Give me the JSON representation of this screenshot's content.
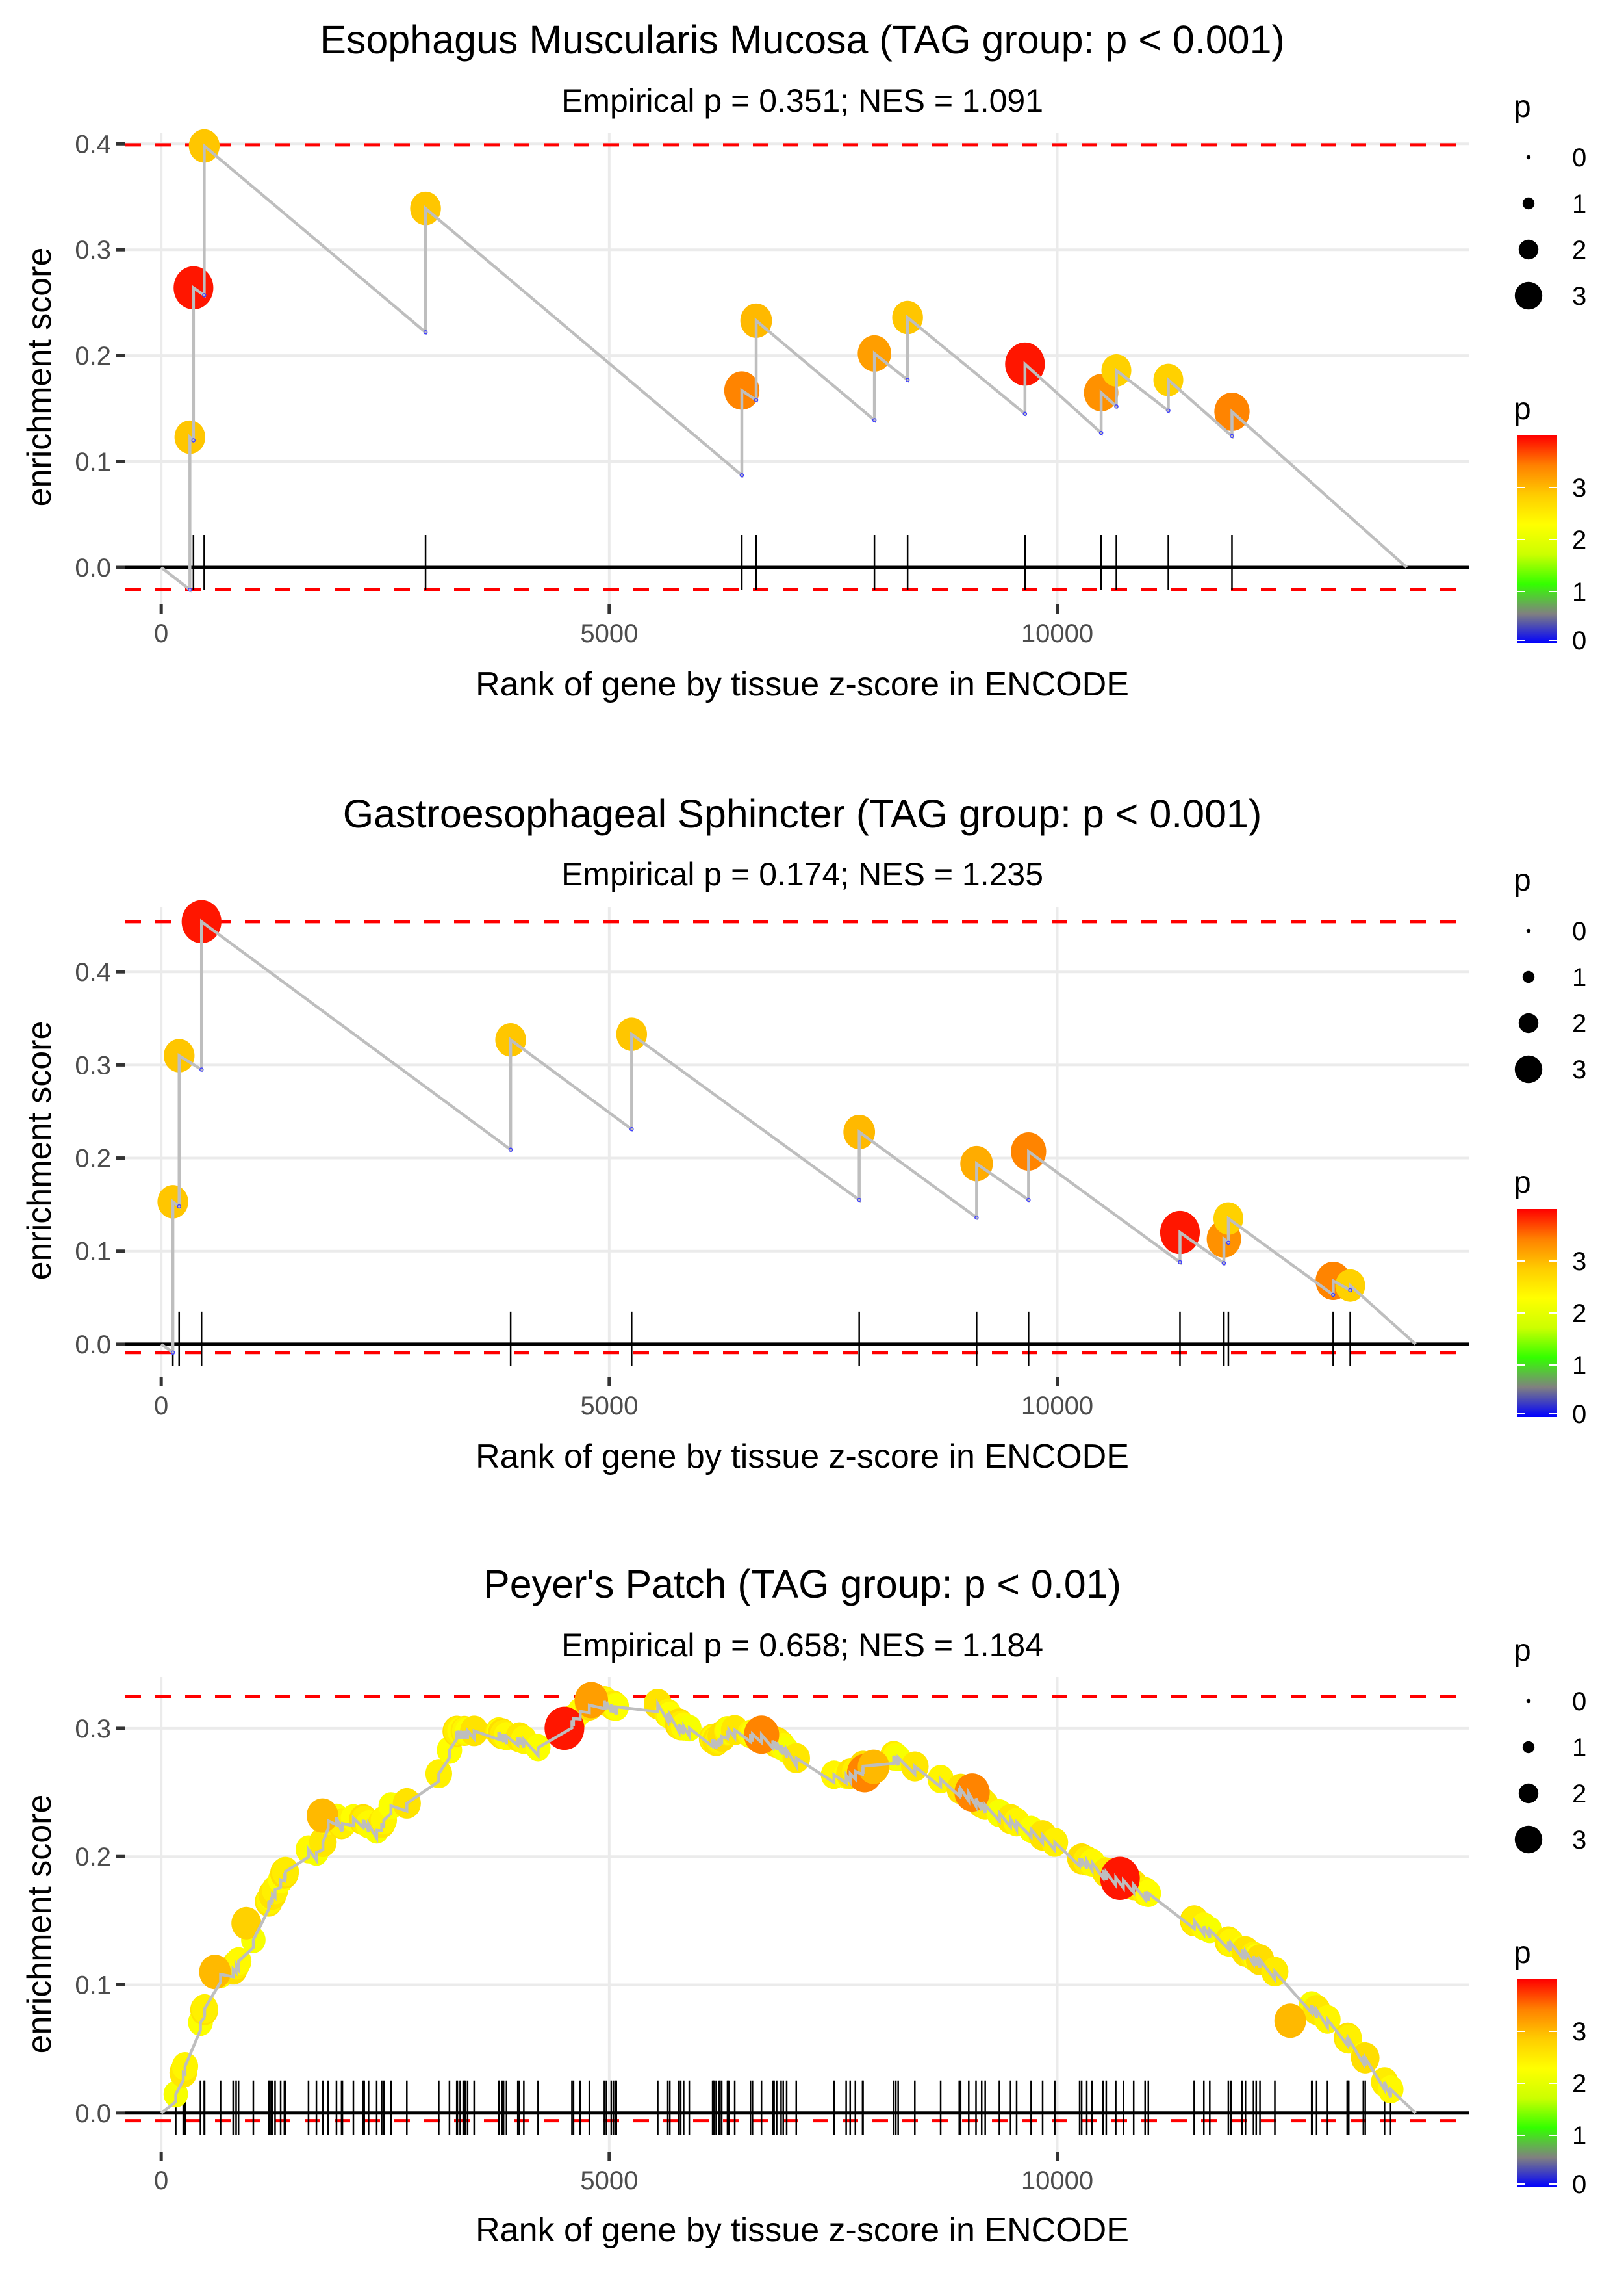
{
  "chart_data": [
    {
      "type": "line",
      "title": "Esophagus Muscularis Mucosa (TAG group: p < 0.001)",
      "subtitle": "Empirical p = 0.351; NES = 1.091",
      "xlabel": "Rank of gene by tissue z-score in ENCODE",
      "ylabel": "enrichment score",
      "xlim": [
        -400,
        14600
      ],
      "ylim": [
        -0.035,
        0.41
      ],
      "xticks": [
        0,
        5000,
        10000
      ],
      "xtick_labels": [
        "0",
        "5000",
        "10000"
      ],
      "yticks": [
        0.0,
        0.1,
        0.2,
        0.3,
        0.4
      ],
      "ytick_labels": [
        "0.0",
        "0.1",
        "0.2",
        "0.3",
        "0.4"
      ],
      "threshold_upper": 0.399,
      "threshold_lower": -0.021,
      "points": [
        {
          "x": 320,
          "low": -0.021,
          "es": 0.123,
          "p": 2.9
        },
        {
          "x": 360,
          "low": 0.12,
          "es": 0.264,
          "p": 3.9
        },
        {
          "x": 480,
          "low": 0.257,
          "es": 0.398,
          "p": 2.9
        },
        {
          "x": 2950,
          "low": 0.222,
          "es": 0.339,
          "p": 2.9
        },
        {
          "x": 6480,
          "low": 0.087,
          "es": 0.167,
          "p": 3.4
        },
        {
          "x": 6640,
          "low": 0.158,
          "es": 0.233,
          "p": 3.0
        },
        {
          "x": 7960,
          "low": 0.139,
          "es": 0.202,
          "p": 3.2
        },
        {
          "x": 8330,
          "low": 0.177,
          "es": 0.236,
          "p": 2.9
        },
        {
          "x": 9640,
          "low": 0.145,
          "es": 0.192,
          "p": 3.9
        },
        {
          "x": 10490,
          "low": 0.127,
          "es": 0.165,
          "p": 3.3
        },
        {
          "x": 10660,
          "low": 0.152,
          "es": 0.186,
          "p": 2.8
        },
        {
          "x": 11240,
          "low": 0.148,
          "es": 0.177,
          "p": 2.8
        },
        {
          "x": 11950,
          "low": 0.124,
          "es": 0.147,
          "p": 3.4
        }
      ],
      "start": {
        "x": 0,
        "es": 0.0
      },
      "end": {
        "x": 13900,
        "es": 0.0
      }
    },
    {
      "type": "line",
      "title": "Gastroesophageal Sphincter (TAG group: p < 0.001)",
      "subtitle": "Empirical p = 0.174; NES = 1.235",
      "xlabel": "Rank of gene by tissue z-score in ENCODE",
      "ylabel": "enrichment score",
      "xlim": [
        -400,
        14600
      ],
      "ylim": [
        -0.035,
        0.47
      ],
      "xticks": [
        0,
        5000,
        10000
      ],
      "xtick_labels": [
        "0",
        "5000",
        "10000"
      ],
      "yticks": [
        0.0,
        0.1,
        0.2,
        0.3,
        0.4
      ],
      "ytick_labels": [
        "0.0",
        "0.1",
        "0.2",
        "0.3",
        "0.4"
      ],
      "threshold_upper": 0.454,
      "threshold_lower": -0.009,
      "points": [
        {
          "x": 130,
          "low": -0.009,
          "es": 0.153,
          "p": 2.9
        },
        {
          "x": 200,
          "low": 0.148,
          "es": 0.31,
          "p": 2.9
        },
        {
          "x": 450,
          "low": 0.295,
          "es": 0.454,
          "p": 3.9
        },
        {
          "x": 3900,
          "low": 0.209,
          "es": 0.327,
          "p": 2.9
        },
        {
          "x": 5250,
          "low": 0.231,
          "es": 0.333,
          "p": 2.9
        },
        {
          "x": 7790,
          "low": 0.155,
          "es": 0.228,
          "p": 3.0
        },
        {
          "x": 9100,
          "low": 0.136,
          "es": 0.194,
          "p": 3.1
        },
        {
          "x": 9680,
          "low": 0.155,
          "es": 0.207,
          "p": 3.4
        },
        {
          "x": 11370,
          "low": 0.088,
          "es": 0.12,
          "p": 3.9
        },
        {
          "x": 11860,
          "low": 0.087,
          "es": 0.113,
          "p": 3.3
        },
        {
          "x": 11910,
          "low": 0.109,
          "es": 0.135,
          "p": 2.8
        },
        {
          "x": 13080,
          "low": 0.053,
          "es": 0.068,
          "p": 3.4
        },
        {
          "x": 13270,
          "low": 0.058,
          "es": 0.063,
          "p": 2.8
        }
      ],
      "start": {
        "x": 0,
        "es": 0.0
      },
      "end": {
        "x": 14000,
        "es": 0.0
      }
    },
    {
      "type": "line",
      "title": "Peyer's Patch (TAG group: p < 0.01)",
      "subtitle": "Empirical p = 0.658; NES = 1.184",
      "xlabel": "Rank of gene by tissue z-score in ENCODE",
      "ylabel": "enrichment score",
      "xlim": [
        -400,
        14600
      ],
      "ylim": [
        -0.03,
        0.34
      ],
      "xticks": [
        0,
        5000,
        10000
      ],
      "xtick_labels": [
        "0",
        "5000",
        "10000"
      ],
      "yticks": [
        0.0,
        0.1,
        0.2,
        0.3
      ],
      "ytick_labels": [
        "0.0",
        "0.1",
        "0.2",
        "0.3"
      ],
      "threshold_upper": 0.325,
      "threshold_lower": -0.006,
      "curve": [
        [
          0,
          0.0
        ],
        [
          100,
          0.006
        ],
        [
          200,
          0.02
        ],
        [
          300,
          0.045
        ],
        [
          400,
          0.062
        ],
        [
          500,
          0.085
        ],
        [
          600,
          0.105
        ],
        [
          700,
          0.11
        ],
        [
          800,
          0.112
        ],
        [
          900,
          0.122
        ],
        [
          1000,
          0.13
        ],
        [
          1100,
          0.148
        ],
        [
          1200,
          0.165
        ],
        [
          1300,
          0.178
        ],
        [
          1400,
          0.19
        ],
        [
          1500,
          0.2
        ],
        [
          1600,
          0.21
        ],
        [
          1700,
          0.2
        ],
        [
          1800,
          0.21
        ],
        [
          1900,
          0.238
        ],
        [
          2000,
          0.225
        ],
        [
          2200,
          0.232
        ],
        [
          2400,
          0.22
        ],
        [
          2500,
          0.23
        ],
        [
          2600,
          0.245
        ],
        [
          2800,
          0.24
        ],
        [
          3000,
          0.25
        ],
        [
          3100,
          0.265
        ],
        [
          3200,
          0.28
        ],
        [
          3300,
          0.298
        ],
        [
          3500,
          0.298
        ],
        [
          3700,
          0.3
        ],
        [
          3900,
          0.292
        ],
        [
          4000,
          0.293
        ],
        [
          4200,
          0.285
        ],
        [
          4350,
          0.283
        ],
        [
          4500,
          0.3
        ],
        [
          4700,
          0.315
        ],
        [
          4900,
          0.323
        ],
        [
          5100,
          0.316
        ],
        [
          5300,
          0.318
        ],
        [
          5450,
          0.325
        ],
        [
          5800,
          0.302
        ],
        [
          6000,
          0.298
        ],
        [
          6200,
          0.29
        ],
        [
          6350,
          0.3
        ],
        [
          6500,
          0.296
        ],
        [
          6700,
          0.295
        ],
        [
          6900,
          0.288
        ],
        [
          7200,
          0.27
        ],
        [
          7400,
          0.266
        ],
        [
          7600,
          0.262
        ],
        [
          7800,
          0.268
        ],
        [
          8000,
          0.283
        ],
        [
          8200,
          0.278
        ],
        [
          8500,
          0.267
        ],
        [
          8800,
          0.257
        ],
        [
          9000,
          0.25
        ],
        [
          9200,
          0.24
        ],
        [
          9400,
          0.232
        ],
        [
          9600,
          0.225
        ],
        [
          9800,
          0.218
        ],
        [
          10000,
          0.21
        ],
        [
          10200,
          0.2
        ],
        [
          10400,
          0.195
        ],
        [
          10600,
          0.185
        ],
        [
          10800,
          0.18
        ],
        [
          11100,
          0.168
        ],
        [
          11400,
          0.155
        ],
        [
          11700,
          0.143
        ],
        [
          12000,
          0.13
        ],
        [
          12300,
          0.118
        ],
        [
          12600,
          0.1
        ],
        [
          12900,
          0.08
        ],
        [
          13200,
          0.062
        ],
        [
          13500,
          0.038
        ],
        [
          13700,
          0.02
        ],
        [
          13900,
          0.005
        ],
        [
          14000,
          0.0
        ]
      ],
      "highlight_points": [
        {
          "x": 4500,
          "es": 0.3,
          "p": 3.9
        },
        {
          "x": 4800,
          "es": 0.322,
          "p": 3.2
        },
        {
          "x": 10700,
          "es": 0.183,
          "p": 3.9
        },
        {
          "x": 9050,
          "es": 0.25,
          "p": 3.4
        },
        {
          "x": 6700,
          "es": 0.295,
          "p": 3.4
        },
        {
          "x": 7850,
          "es": 0.265,
          "p": 3.4
        },
        {
          "x": 1800,
          "es": 0.232,
          "p": 3.0
        },
        {
          "x": 950,
          "es": 0.148,
          "p": 2.8
        },
        {
          "x": 600,
          "es": 0.11,
          "p": 3.0
        },
        {
          "x": 7950,
          "es": 0.27,
          "p": 3.0
        },
        {
          "x": 12600,
          "es": 0.072,
          "p": 3.0
        }
      ],
      "gene_ranks_count_approx": 150,
      "background_point_p": 2.3
    }
  ],
  "legend": {
    "size_title": "p",
    "size_labels": [
      "0",
      "1",
      "2",
      "3"
    ],
    "color_title": "p",
    "color_labels": [
      "3",
      "2",
      "1",
      "0"
    ],
    "color_stops": [
      "#0000ff",
      "#808080",
      "#33ff00",
      "#ccff00",
      "#ffff00",
      "#ffcc00",
      "#ff8000",
      "#ff0000"
    ],
    "color_max": 4.0
  }
}
